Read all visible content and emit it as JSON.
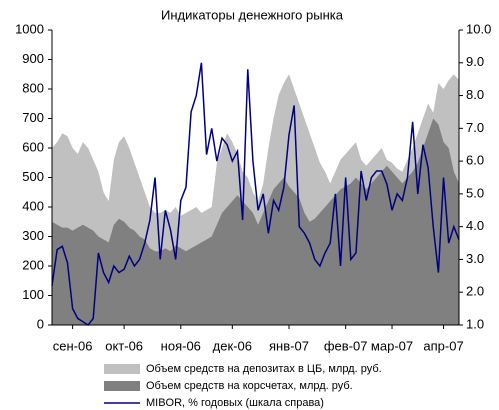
{
  "chart_data": {
    "type": "area",
    "title": "Индикаторы денежного рынка",
    "categories": [
      null,
      null,
      null,
      null,
      "сен-06",
      null,
      null,
      null,
      null,
      null,
      null,
      null,
      null,
      null,
      "окт-06",
      null,
      null,
      null,
      null,
      null,
      null,
      null,
      null,
      null,
      null,
      "ноя-06",
      null,
      null,
      null,
      null,
      null,
      null,
      null,
      null,
      null,
      "дек-06",
      null,
      null,
      null,
      null,
      null,
      null,
      null,
      null,
      null,
      null,
      "янв-07",
      null,
      null,
      null,
      null,
      null,
      null,
      null,
      null,
      null,
      null,
      "фев-07",
      null,
      null,
      null,
      null,
      null,
      null,
      null,
      null,
      "мар-07",
      null,
      null,
      null,
      null,
      null,
      null,
      null,
      null,
      null,
      "апр-07",
      null,
      null,
      null
    ],
    "series": [
      {
        "name": "Объем средств на депозитах в ЦБ, млрд. руб.",
        "color": "#c0c0c0",
        "type": "area",
        "values": [
          600,
          620,
          650,
          640,
          600,
          580,
          620,
          600,
          560,
          520,
          450,
          420,
          560,
          620,
          640,
          600,
          550,
          500,
          450,
          400,
          380,
          380,
          390,
          380,
          400,
          370,
          380,
          390,
          400,
          380,
          390,
          400,
          550,
          600,
          650,
          620,
          580,
          520,
          500,
          450,
          420,
          480,
          600,
          700,
          780,
          820,
          850,
          800,
          750,
          700,
          650,
          600,
          550,
          520,
          480,
          520,
          560,
          580,
          600,
          620,
          560,
          540,
          560,
          580,
          600,
          560,
          550,
          530,
          520,
          560,
          600,
          650,
          700,
          750,
          720,
          820,
          800,
          830,
          850,
          830
        ]
      },
      {
        "name": "Объем средств на корсчетах, млрд. руб.",
        "color": "#808080",
        "type": "area",
        "values": [
          350,
          340,
          330,
          330,
          320,
          330,
          340,
          330,
          320,
          300,
          290,
          280,
          340,
          360,
          350,
          330,
          320,
          300,
          290,
          260,
          250,
          250,
          260,
          250,
          270,
          260,
          250,
          260,
          270,
          280,
          290,
          300,
          340,
          380,
          400,
          420,
          440,
          420,
          400,
          380,
          340,
          380,
          420,
          460,
          480,
          500,
          470,
          450,
          430,
          380,
          350,
          360,
          380,
          400,
          420,
          440,
          460,
          470,
          480,
          500,
          480,
          460,
          480,
          500,
          520,
          540,
          520,
          500,
          480,
          500,
          520,
          550,
          600,
          650,
          700,
          680,
          620,
          600,
          520,
          480
        ]
      },
      {
        "name": "MIBOR, % годовых (шкала справа)",
        "color": "#000080",
        "type": "line",
        "axis": "y2",
        "values": [
          2.2,
          3.3,
          3.4,
          2.9,
          1.5,
          1.2,
          1.1,
          1.0,
          1.2,
          3.2,
          2.6,
          2.3,
          2.8,
          2.6,
          2.7,
          3.1,
          2.8,
          3.0,
          3.5,
          4.2,
          5.5,
          3.0,
          4.5,
          3.9,
          3.0,
          4.8,
          5.2,
          7.5,
          8.0,
          9.0,
          6.2,
          7.0,
          6.0,
          6.7,
          6.5,
          6.0,
          6.3,
          4.2,
          8.8,
          6.0,
          4.5,
          5.0,
          3.8,
          4.8,
          4.5,
          5.2,
          6.8,
          7.7,
          4.0,
          3.8,
          3.5,
          3.0,
          2.8,
          3.2,
          3.5,
          5.0,
          2.8,
          5.5,
          3.0,
          3.2,
          5.7,
          4.8,
          5.5,
          5.7,
          5.7,
          5.3,
          4.5,
          5.0,
          4.8,
          5.5,
          7.2,
          5.0,
          6.5,
          5.8,
          4.0,
          2.6,
          5.5,
          3.5,
          4.0,
          3.6
        ]
      }
    ],
    "ylim": [
      0,
      1000
    ],
    "yticks": [
      0,
      100,
      200,
      300,
      400,
      500,
      600,
      700,
      800,
      900,
      1000
    ],
    "y2lim": [
      1,
      10
    ],
    "y2ticks": [
      {
        "value": 1,
        "label": "1.0"
      },
      {
        "value": 2,
        "label": "2.0"
      },
      {
        "value": 3,
        "label": "3.0"
      },
      {
        "value": 4,
        "label": "4.0"
      },
      {
        "value": 5,
        "label": "5.0"
      },
      {
        "value": 6,
        "label": "6.0"
      },
      {
        "value": 7,
        "label": "7.0"
      },
      {
        "value": 8,
        "label": "8.0"
      },
      {
        "value": 9,
        "label": "9.0"
      },
      {
        "value": 10,
        "label": "10.0"
      }
    ],
    "grid": false
  }
}
